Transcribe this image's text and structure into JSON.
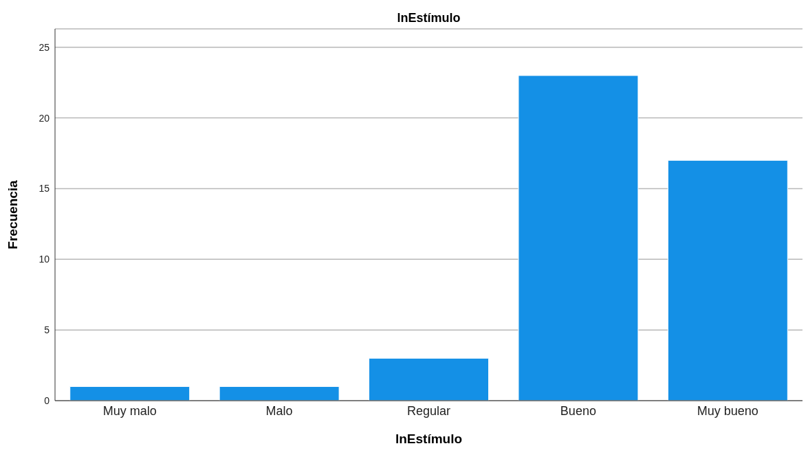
{
  "chart_data": {
    "type": "bar",
    "title": "lnEstímulo",
    "xlabel": "lnEstímulo",
    "ylabel": "Frecuencia",
    "categories": [
      "Muy malo",
      "Malo",
      "Regular",
      "Bueno",
      "Muy bueno"
    ],
    "values": [
      1,
      1,
      3,
      23,
      17
    ],
    "color": "#1490e6",
    "ylim": [
      0,
      26.3
    ],
    "yticks": [
      0,
      5,
      10,
      15,
      20,
      25
    ],
    "grid": "y"
  }
}
